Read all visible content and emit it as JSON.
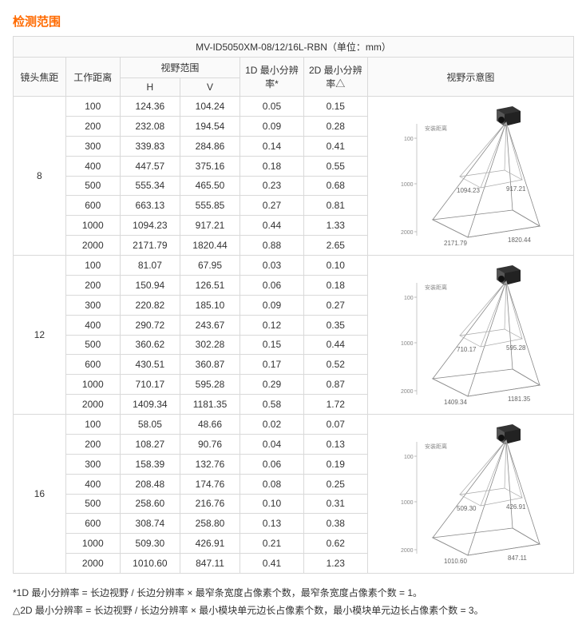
{
  "title": "检测范围",
  "table_title": "MV-ID5050XM-08/12/16L-RBN（单位：mm）",
  "headers": {
    "focal": "镜头焦距",
    "work_dist": "工作距离",
    "fov": "视野范围",
    "fov_h": "H",
    "fov_v": "V",
    "res1d": "1D 最小分辨率*",
    "res2d": "2D 最小分辨率△",
    "diagram": "视野示意图"
  },
  "groups": [
    {
      "focal": "8",
      "rows": [
        {
          "d": "100",
          "h": "124.36",
          "v": "104.24",
          "r1": "0.05",
          "r2": "0.15"
        },
        {
          "d": "200",
          "h": "232.08",
          "v": "194.54",
          "r1": "0.09",
          "r2": "0.28"
        },
        {
          "d": "300",
          "h": "339.83",
          "v": "284.86",
          "r1": "0.14",
          "r2": "0.41"
        },
        {
          "d": "400",
          "h": "447.57",
          "v": "375.16",
          "r1": "0.18",
          "r2": "0.55"
        },
        {
          "d": "500",
          "h": "555.34",
          "v": "465.50",
          "r1": "0.23",
          "r2": "0.68"
        },
        {
          "d": "600",
          "h": "663.13",
          "v": "555.85",
          "r1": "0.27",
          "r2": "0.81"
        },
        {
          "d": "1000",
          "h": "1094.23",
          "v": "917.21",
          "r1": "0.44",
          "r2": "1.33"
        },
        {
          "d": "2000",
          "h": "2171.79",
          "v": "1820.44",
          "r1": "0.88",
          "r2": "2.65"
        }
      ],
      "diagram": {
        "mid_h": "1094.23",
        "mid_v": "917.21",
        "bot_h": "2171.79",
        "bot_v": "1820.44",
        "top_label": "安装距离",
        "y_mid": "1000",
        "y_bot": "2000"
      }
    },
    {
      "focal": "12",
      "rows": [
        {
          "d": "100",
          "h": "81.07",
          "v": "67.95",
          "r1": "0.03",
          "r2": "0.10"
        },
        {
          "d": "200",
          "h": "150.94",
          "v": "126.51",
          "r1": "0.06",
          "r2": "0.18"
        },
        {
          "d": "300",
          "h": "220.82",
          "v": "185.10",
          "r1": "0.09",
          "r2": "0.27"
        },
        {
          "d": "400",
          "h": "290.72",
          "v": "243.67",
          "r1": "0.12",
          "r2": "0.35"
        },
        {
          "d": "500",
          "h": "360.62",
          "v": "302.28",
          "r1": "0.15",
          "r2": "0.44"
        },
        {
          "d": "600",
          "h": "430.51",
          "v": "360.87",
          "r1": "0.17",
          "r2": "0.52"
        },
        {
          "d": "1000",
          "h": "710.17",
          "v": "595.28",
          "r1": "0.29",
          "r2": "0.87"
        },
        {
          "d": "2000",
          "h": "1409.34",
          "v": "1181.35",
          "r1": "0.58",
          "r2": "1.72"
        }
      ],
      "diagram": {
        "mid_h": "710.17",
        "mid_v": "595.28",
        "bot_h": "1409.34",
        "bot_v": "1181.35",
        "top_label": "安装距离",
        "y_mid": "1000",
        "y_bot": "2000"
      }
    },
    {
      "focal": "16",
      "rows": [
        {
          "d": "100",
          "h": "58.05",
          "v": "48.66",
          "r1": "0.02",
          "r2": "0.07"
        },
        {
          "d": "200",
          "h": "108.27",
          "v": "90.76",
          "r1": "0.04",
          "r2": "0.13"
        },
        {
          "d": "300",
          "h": "158.39",
          "v": "132.76",
          "r1": "0.06",
          "r2": "0.19"
        },
        {
          "d": "400",
          "h": "208.48",
          "v": "174.76",
          "r1": "0.08",
          "r2": "0.25"
        },
        {
          "d": "500",
          "h": "258.60",
          "v": "216.76",
          "r1": "0.10",
          "r2": "0.31"
        },
        {
          "d": "600",
          "h": "308.74",
          "v": "258.80",
          "r1": "0.13",
          "r2": "0.38"
        },
        {
          "d": "1000",
          "h": "509.30",
          "v": "426.91",
          "r1": "0.21",
          "r2": "0.62"
        },
        {
          "d": "2000",
          "h": "1010.60",
          "v": "847.11",
          "r1": "0.41",
          "r2": "1.23"
        }
      ],
      "diagram": {
        "mid_h": "509.30",
        "mid_v": "426.91",
        "bot_h": "1010.60",
        "bot_v": "847.11",
        "top_label": "安装距离",
        "y_mid": "1000",
        "y_bot": "2000"
      }
    }
  ],
  "footnotes": {
    "f1": "*1D 最小分辨率 = 长边视野 / 长边分辨率 × 最窄条宽度占像素个数，最窄条宽度占像素个数 = 1。",
    "f2": "△2D 最小分辨率 = 长边视野 / 长边分辨率 × 最小模块单元边长占像素个数，最小模块单元边长占像素个数 = 3。"
  }
}
